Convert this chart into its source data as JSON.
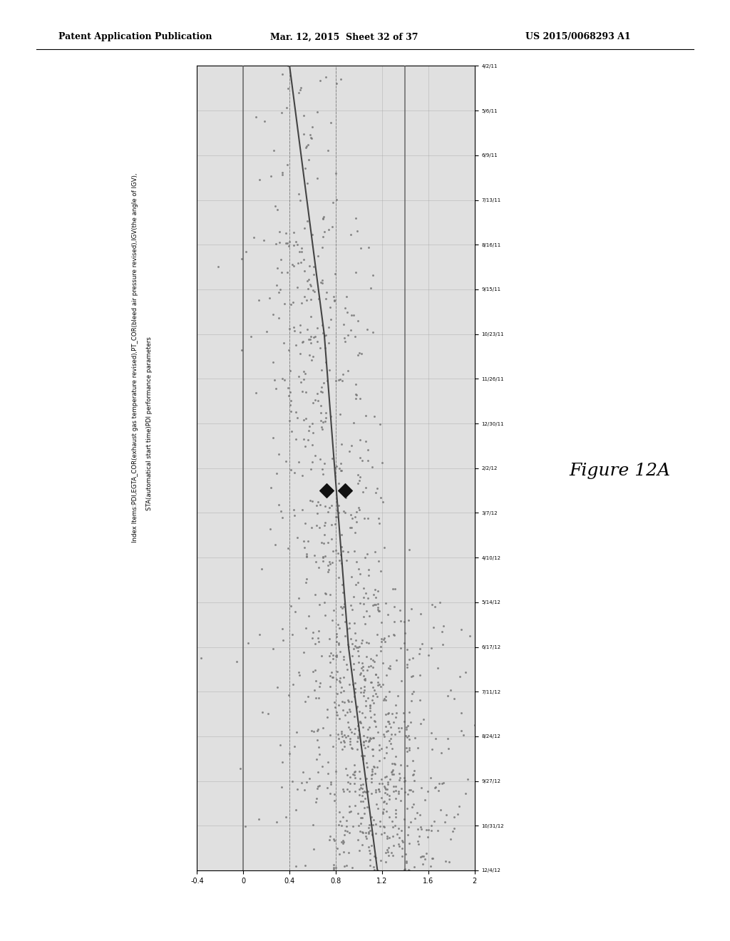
{
  "header_left": "Patent Application Publication",
  "header_center": "Mar. 12, 2015  Sheet 32 of 37",
  "header_right": "US 2015/0068293 A1",
  "figure_label": "Figure 12A",
  "index_text_line1": "Index Items:PDI,EGTA_COR(exhaust gas temperature revised),PT_COR(bleed air pressure revised),IGV(the angle of IGV),",
  "index_text_line2": "STA(automatical start time)PDI performance parameters",
  "y_ticks": [
    -0.4,
    0,
    0.4,
    0.8,
    1.2,
    1.6,
    2
  ],
  "y_tick_labels": [
    "-0.4",
    "0",
    "0.4",
    "0.8",
    "1.2",
    "1.6",
    "2"
  ],
  "x_tick_labels": [
    "4/2/11",
    "5/6/11",
    "6/9/11",
    "7/13/11",
    "8/16/11",
    "9/15/11",
    "10/23/11",
    "11/26/11",
    "12/30/11",
    "2/2/12",
    "3/7/12",
    "4/10/12",
    "5/14/12",
    "6/17/12",
    "7/11/12",
    "8/24/12",
    "9/27/12",
    "10/31/12",
    "12/4/12"
  ],
  "background_color": "#ffffff",
  "chart_bg": "#e0e0e0",
  "grid_color": "#999999",
  "scatter_color": "#777777",
  "line_color": "#444444",
  "diamond_color": "#111111"
}
